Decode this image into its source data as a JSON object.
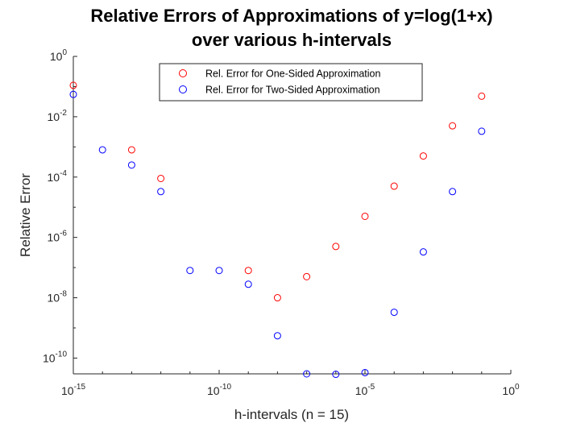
{
  "chart_data": {
    "type": "scatter",
    "title_line1": "Relative Errors of Approximations of y=log(1+x)",
    "title_line2": "over various h-intervals",
    "xlabel": "h-intervals (n = 15)",
    "ylabel": "Relative Error",
    "x_scale": "log",
    "y_scale": "log",
    "xlim": [
      1e-15,
      1
    ],
    "ylim": [
      3e-11,
      1
    ],
    "grid": false,
    "legend_position": "top-center",
    "x_ticks": [
      {
        "base": "10",
        "exp": "-15",
        "value": 1e-15
      },
      {
        "base": "10",
        "exp": "-10",
        "value": 1e-10
      },
      {
        "base": "10",
        "exp": "-5",
        "value": 1e-05
      },
      {
        "base": "10",
        "exp": "0",
        "value": 1
      }
    ],
    "y_ticks": [
      {
        "base": "10",
        "exp": "-10",
        "value": 1e-10
      },
      {
        "base": "10",
        "exp": "-8",
        "value": 1e-08
      },
      {
        "base": "10",
        "exp": "-6",
        "value": 1e-06
      },
      {
        "base": "10",
        "exp": "-4",
        "value": 0.0001
      },
      {
        "base": "10",
        "exp": "-2",
        "value": 0.01
      },
      {
        "base": "10",
        "exp": "0",
        "value": 1
      }
    ],
    "series": [
      {
        "name": "Rel. Error for One-Sided Approximation",
        "color": "#ff0000",
        "marker": "circle-open",
        "x": [
          1e-15,
          1e-14,
          1e-13,
          1e-12,
          1e-11,
          1e-10,
          1e-09,
          1e-08,
          1e-07,
          1e-06,
          1e-05,
          0.0001,
          0.001,
          0.01,
          0.1
        ],
        "y": [
          0.11,
          null,
          0.0008,
          9e-05,
          null,
          null,
          8e-08,
          1e-08,
          5e-08,
          5e-07,
          5e-06,
          5e-05,
          0.0005,
          0.005,
          0.048
        ]
      },
      {
        "name": "Rel. Error for Two-Sided Approximation",
        "color": "#0000ff",
        "marker": "circle-open",
        "x": [
          1e-15,
          1e-14,
          1e-13,
          1e-12,
          1e-11,
          1e-10,
          1e-09,
          1e-08,
          1e-07,
          1e-06,
          1e-05,
          0.0001,
          0.001,
          0.01,
          0.1
        ],
        "y": [
          0.055,
          0.0008,
          0.00025,
          3.3e-05,
          8e-08,
          8e-08,
          2.8e-08,
          5.5e-10,
          3e-11,
          2.9e-11,
          3.3e-11,
          3.3e-09,
          3.3e-07,
          3.3e-05,
          0.0033
        ]
      }
    ]
  }
}
